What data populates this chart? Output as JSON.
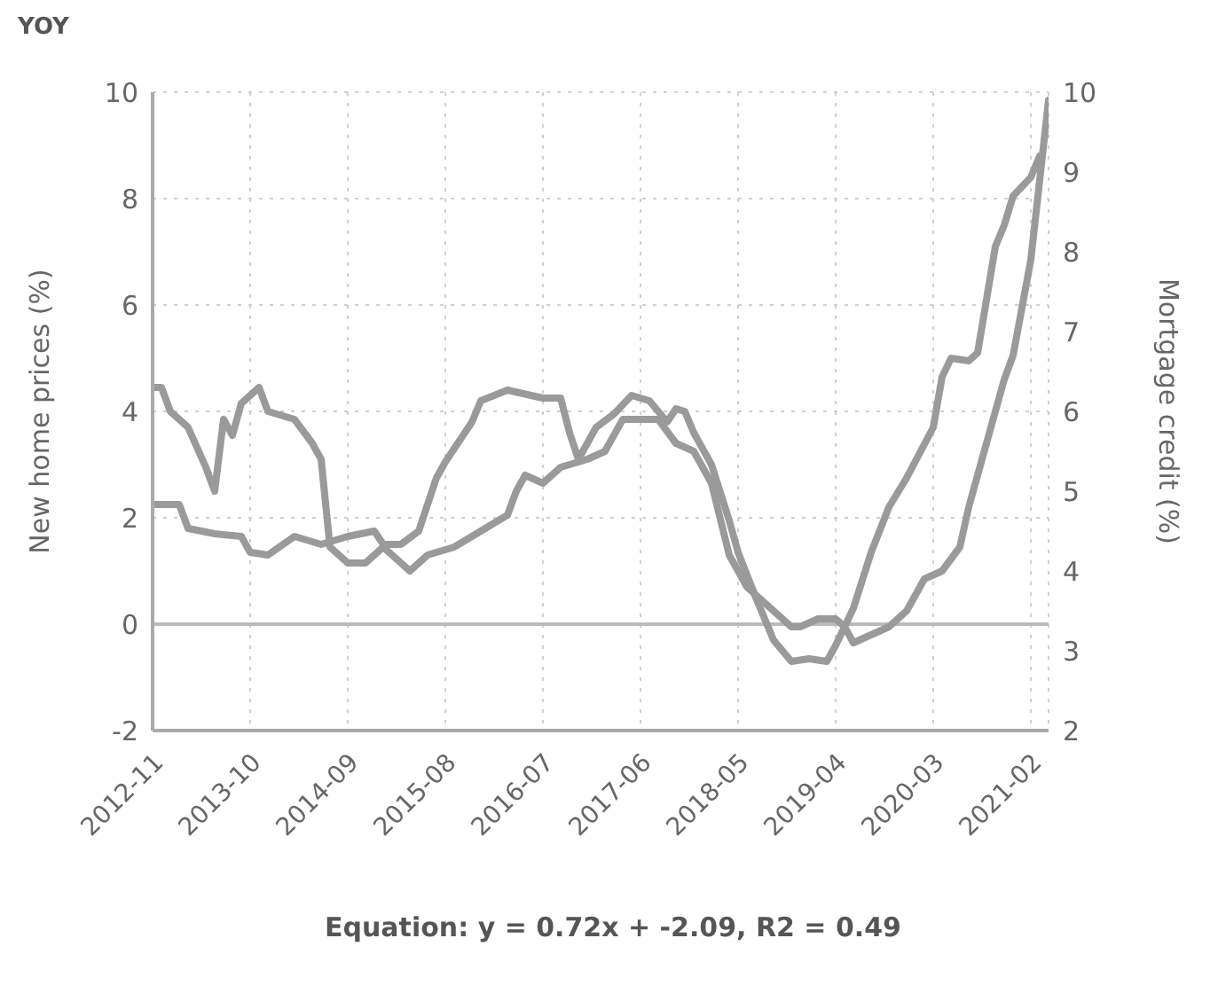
{
  "chart_data": {
    "type": "line",
    "title": "YOY",
    "ylabel": "New home prices (%)",
    "y2label": "Mortgage credit (%)",
    "annotations": [
      "Equation: y = 0.72x + -2.09, R2 = 0.49"
    ],
    "xlim": [
      "2012-11",
      "2021-04"
    ],
    "xticks": [
      "2012-11",
      "2013-10",
      "2014-09",
      "2015-08",
      "2016-07",
      "2017-06",
      "2018-05",
      "2019-04",
      "2020-03",
      "2021-02"
    ],
    "ylim": [
      -2,
      10
    ],
    "yticks": [
      -2,
      0,
      2,
      4,
      6,
      8,
      10
    ],
    "y2lim": [
      2,
      10
    ],
    "y2ticks": [
      2,
      3,
      4,
      5,
      6,
      7,
      8,
      9,
      10
    ],
    "grid": true,
    "line_style": "solid",
    "marker": "none",
    "ref_lines": [
      {
        "axis": "y",
        "value": 0,
        "color": "#bbbbbb"
      }
    ],
    "series": [
      {
        "color": "#9a9a9a",
        "x": [
          "2012-11",
          "2013-02",
          "2013-03",
          "2013-06",
          "2013-09",
          "2013-10",
          "2013-12",
          "2014-03",
          "2014-06",
          "2014-09",
          "2014-12",
          "2015-01",
          "2015-03",
          "2015-05",
          "2015-07",
          "2015-08",
          "2015-11",
          "2015-12",
          "2016-03",
          "2016-07",
          "2016-09",
          "2016-10",
          "2016-11",
          "2017-01",
          "2017-03",
          "2017-05",
          "2017-07",
          "2017-09",
          "2017-10",
          "2017-11",
          "2017-12",
          "2018-02",
          "2018-04",
          "2018-05",
          "2018-07",
          "2018-09",
          "2018-11",
          "2019-01",
          "2019-03",
          "2019-04",
          "2019-06",
          "2019-08",
          "2019-10",
          "2019-12",
          "2020-03",
          "2020-04",
          "2020-05",
          "2020-07",
          "2020-08",
          "2020-10",
          "2020-11",
          "2020-12",
          "2021-02",
          "2021-03"
        ],
        "values": [
          2.25,
          2.25,
          1.8,
          1.7,
          1.65,
          1.35,
          1.3,
          1.65,
          1.5,
          1.65,
          1.75,
          1.5,
          1.5,
          1.75,
          2.75,
          3.05,
          3.8,
          4.2,
          4.4,
          4.25,
          4.25,
          3.6,
          3.1,
          3.7,
          3.95,
          4.3,
          4.2,
          3.8,
          4.05,
          4.0,
          3.6,
          3.0,
          1.95,
          1.35,
          0.5,
          -0.3,
          -0.7,
          -0.65,
          -0.7,
          -0.4,
          0.3,
          1.35,
          2.2,
          2.75,
          3.7,
          4.65,
          5.0,
          4.95,
          5.1,
          7.1,
          7.5,
          8.05,
          8.4,
          8.8
        ]
      },
      {
        "color": "#9a9a9a",
        "axis": "y2",
        "x": [
          "2012-11",
          "2012-12",
          "2013-01",
          "2013-03",
          "2013-05",
          "2013-06",
          "2013-07",
          "2013-08",
          "2013-09",
          "2013-11",
          "2013-12",
          "2014-03",
          "2014-05",
          "2014-06",
          "2014-07",
          "2014-09",
          "2014-11",
          "2015-01",
          "2015-02",
          "2015-04",
          "2015-06",
          "2015-09",
          "2015-12",
          "2016-03",
          "2016-04",
          "2016-05",
          "2016-07",
          "2016-09",
          "2016-12",
          "2017-02",
          "2017-04",
          "2017-06",
          "2017-08",
          "2017-10",
          "2017-12",
          "2018-02",
          "2018-04",
          "2018-06",
          "2018-09",
          "2018-11",
          "2018-12",
          "2019-02",
          "2019-04",
          "2019-05",
          "2019-06",
          "2019-08",
          "2019-10",
          "2019-12",
          "2020-02",
          "2020-04",
          "2020-06",
          "2020-07",
          "2020-09",
          "2020-11",
          "2020-12",
          "2021-02",
          "2021-03",
          "2021-04"
        ],
        "values": [
          6.3,
          6.3,
          6.0,
          5.8,
          5.3,
          5.0,
          5.9,
          5.7,
          6.1,
          6.3,
          6.0,
          5.9,
          5.6,
          5.4,
          4.3,
          4.1,
          4.1,
          4.3,
          4.2,
          4.0,
          4.2,
          4.3,
          4.5,
          4.7,
          5.0,
          5.2,
          5.1,
          5.3,
          5.4,
          5.5,
          5.9,
          5.9,
          5.9,
          5.6,
          5.5,
          5.1,
          4.2,
          3.8,
          3.5,
          3.3,
          3.3,
          3.4,
          3.4,
          3.3,
          3.1,
          3.2,
          3.3,
          3.5,
          3.9,
          4.0,
          4.3,
          4.8,
          5.6,
          6.4,
          6.7,
          7.9,
          8.9,
          9.9
        ]
      }
    ]
  }
}
